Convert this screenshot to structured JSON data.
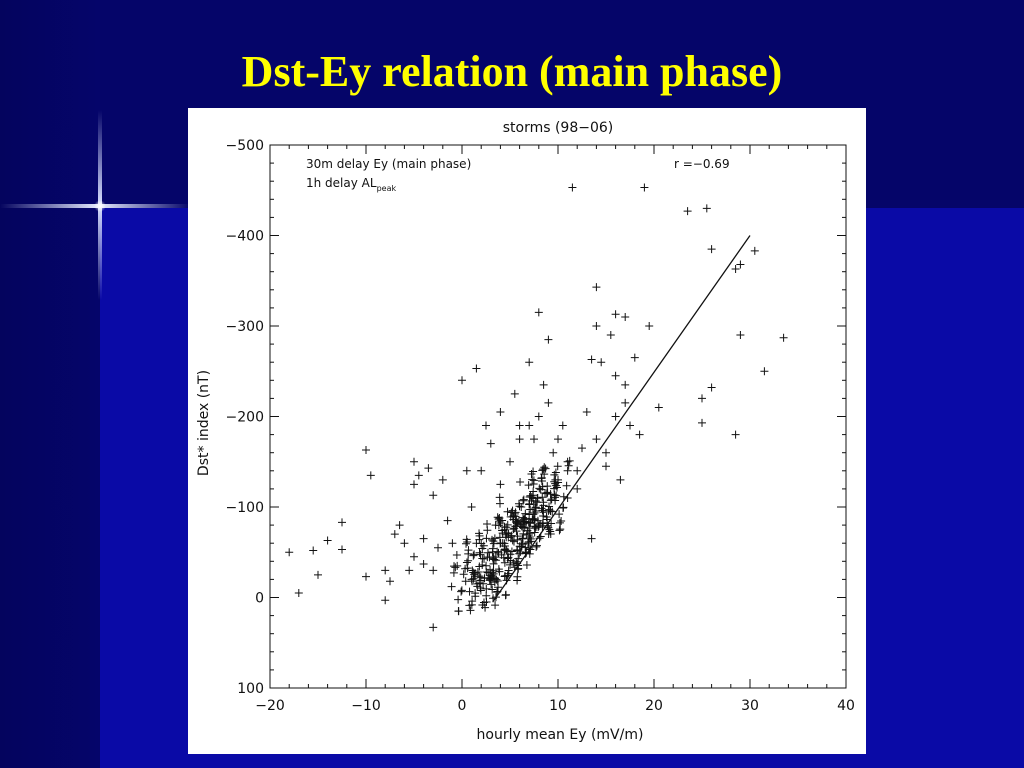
{
  "slide": {
    "title": "Dst-Ey relation (main phase)"
  },
  "chart_data": {
    "type": "scatter",
    "title": "storms (98−06)",
    "xlabel": "hourly mean Ey (mV/m)",
    "ylabel": "Dst* index (nT)",
    "xlim": [
      -20,
      40
    ],
    "ylim": [
      100,
      -500
    ],
    "x_ticks": [
      "−20",
      "−10",
      "0",
      "10",
      "20",
      "30",
      "40"
    ],
    "y_ticks": [
      "−500",
      "−400",
      "−300",
      "−200",
      "−100",
      "0",
      "100"
    ],
    "grid": false,
    "annotations": {
      "line1": "30m delay Ey (main phase)",
      "line2_main": "1h delay AL",
      "line2_sub": "peak",
      "corr": "r =−0.69"
    },
    "regression_line": {
      "x": [
        3.2,
        30.0
      ],
      "y": [
        5,
        -400
      ]
    },
    "series": [
      {
        "marker": "+",
        "points": [
          [
            -18,
            -50
          ],
          [
            -17,
            -5
          ],
          [
            -15.5,
            -52
          ],
          [
            -15,
            -25
          ],
          [
            -14,
            -63
          ],
          [
            -12.5,
            -83
          ],
          [
            -12.5,
            -53
          ],
          [
            -10,
            -163
          ],
          [
            -10,
            -23
          ],
          [
            -9.5,
            -135
          ],
          [
            -8,
            -30
          ],
          [
            -8,
            3
          ],
          [
            -7.5,
            -18
          ],
          [
            -7,
            -70
          ],
          [
            -6.5,
            -80
          ],
          [
            -6,
            -60
          ],
          [
            -5.5,
            -30
          ],
          [
            -5,
            -150
          ],
          [
            -5,
            -125
          ],
          [
            -5,
            -45
          ],
          [
            -4.5,
            -135
          ],
          [
            -4,
            -65
          ],
          [
            -4,
            -37
          ],
          [
            -3.5,
            -143
          ],
          [
            -3,
            -113
          ],
          [
            -3,
            -30
          ],
          [
            -3,
            33
          ],
          [
            -2.5,
            -55
          ],
          [
            -2,
            -130
          ],
          [
            -1.5,
            -85
          ],
          [
            -1,
            -60
          ],
          [
            -0.5,
            -35
          ],
          [
            0,
            -240
          ],
          [
            0.5,
            -140
          ],
          [
            1,
            -100
          ],
          [
            1,
            -20
          ],
          [
            1.5,
            -253
          ],
          [
            1.5,
            -60
          ],
          [
            2,
            -140
          ],
          [
            2.5,
            -190
          ],
          [
            3,
            -170
          ],
          [
            3.5,
            -80
          ],
          [
            4,
            -205
          ],
          [
            4,
            -125
          ],
          [
            5,
            -150
          ],
          [
            5.5,
            -225
          ],
          [
            6,
            -190
          ],
          [
            7,
            -260
          ],
          [
            7.5,
            -175
          ],
          [
            8,
            -315
          ],
          [
            8,
            -200
          ],
          [
            8.5,
            -235
          ],
          [
            9,
            -285
          ],
          [
            9.5,
            -160
          ],
          [
            10,
            -130
          ],
          [
            10.5,
            -190
          ],
          [
            11,
            -110
          ],
          [
            11.5,
            -453
          ],
          [
            12,
            -140
          ],
          [
            13,
            -205
          ],
          [
            13.5,
            -263
          ],
          [
            13.5,
            -65
          ],
          [
            14,
            -300
          ],
          [
            14,
            -343
          ],
          [
            14.5,
            -260
          ],
          [
            15,
            -160
          ],
          [
            16,
            -313
          ],
          [
            16,
            -245
          ],
          [
            16.5,
            -130
          ],
          [
            17,
            -235
          ],
          [
            17.5,
            -190
          ],
          [
            18,
            -265
          ],
          [
            18.5,
            -180
          ],
          [
            19,
            -453
          ],
          [
            19.5,
            -300
          ],
          [
            20.5,
            -210
          ],
          [
            23.5,
            -427
          ],
          [
            25,
            -193
          ],
          [
            25.5,
            -430
          ],
          [
            25,
            -220
          ],
          [
            26,
            -385
          ],
          [
            26,
            -232
          ],
          [
            28.5,
            -363
          ],
          [
            29,
            -368
          ],
          [
            29,
            -290
          ],
          [
            28.5,
            -180
          ],
          [
            30.5,
            -383
          ],
          [
            31.5,
            -250
          ],
          [
            33.5,
            -287
          ],
          [
            15.5,
            -290
          ],
          [
            17,
            -310
          ],
          [
            12.5,
            -165
          ],
          [
            14,
            -175
          ],
          [
            15,
            -145
          ],
          [
            16,
            -200
          ],
          [
            17,
            -215
          ],
          [
            10,
            -175
          ],
          [
            9,
            -215
          ],
          [
            7,
            -190
          ],
          [
            6,
            -175
          ],
          [
            11,
            -150
          ],
          [
            12,
            -120
          ]
        ]
      }
    ]
  }
}
